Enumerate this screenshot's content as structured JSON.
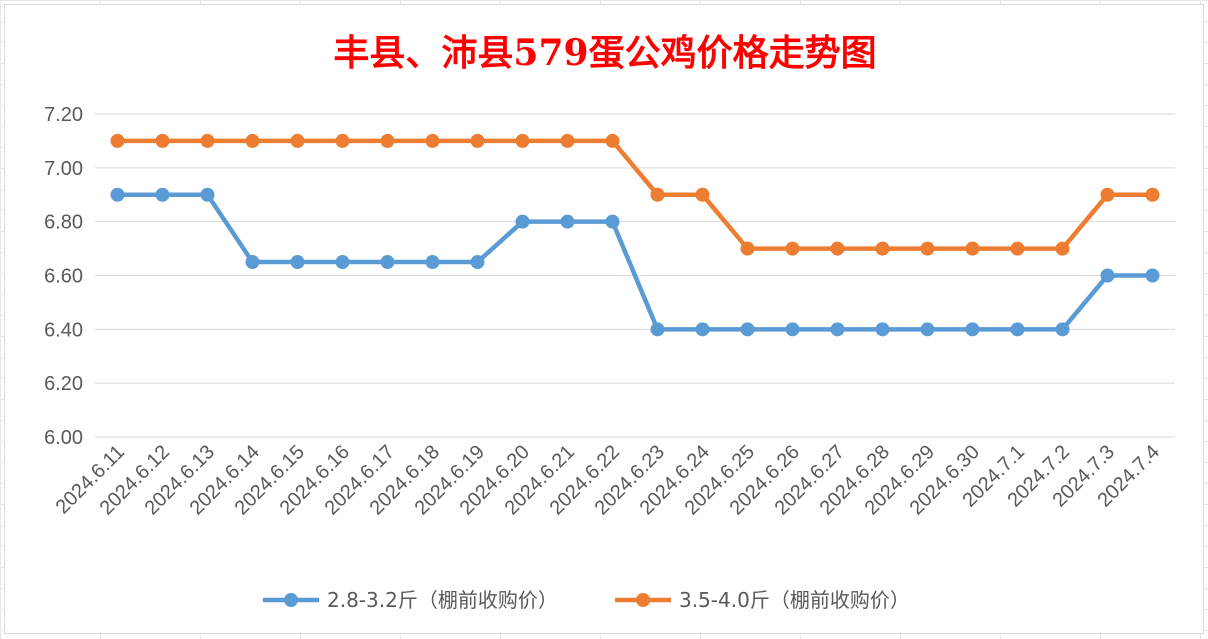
{
  "chart_data": {
    "type": "line",
    "title": "丰县、沛县579蛋公鸡价格走势图",
    "xlabel": "",
    "ylabel": "",
    "ylim": [
      6.0,
      7.2
    ],
    "yticks": [
      "6.00",
      "6.20",
      "6.40",
      "6.60",
      "6.80",
      "7.00",
      "7.20"
    ],
    "grid": true,
    "legend_position": "bottom",
    "categories": [
      "2024.6.11",
      "2024.6.12",
      "2024.6.13",
      "2024.6.14",
      "2024.6.15",
      "2024.6.16",
      "2024.6.17",
      "2024.6.18",
      "2024.6.19",
      "2024.6.20",
      "2024.6.21",
      "2024.6.22",
      "2024.6.23",
      "2024.6.24",
      "2024.6.25",
      "2024.6.26",
      "2024.6.27",
      "2024.6.28",
      "2024.6.29",
      "2024.6.30",
      "2024.7.1",
      "2024.7.2",
      "2024.7.3",
      "2024.7.4"
    ],
    "series": [
      {
        "name": "2.8-3.2斤（棚前收购价）",
        "color": "#5b9bd5",
        "values": [
          6.9,
          6.9,
          6.9,
          6.65,
          6.65,
          6.65,
          6.65,
          6.65,
          6.65,
          6.8,
          6.8,
          6.8,
          6.4,
          6.4,
          6.4,
          6.4,
          6.4,
          6.4,
          6.4,
          6.4,
          6.4,
          6.4,
          6.6,
          6.6
        ]
      },
      {
        "name": "3.5-4.0斤（棚前收购价）",
        "color": "#ed7d31",
        "values": [
          7.1,
          7.1,
          7.1,
          7.1,
          7.1,
          7.1,
          7.1,
          7.1,
          7.1,
          7.1,
          7.1,
          7.1,
          6.9,
          6.9,
          6.7,
          6.7,
          6.7,
          6.7,
          6.7,
          6.7,
          6.7,
          6.7,
          6.9,
          6.9
        ]
      }
    ]
  }
}
